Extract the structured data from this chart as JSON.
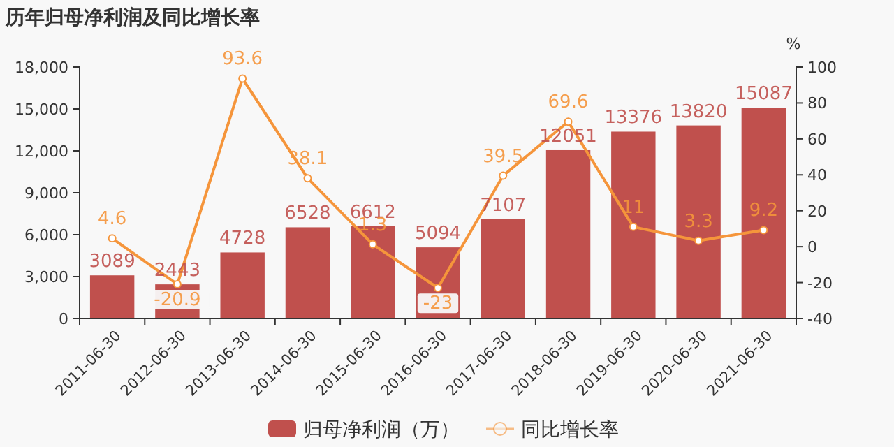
{
  "chart_data": {
    "type": "bar",
    "title": "历年归母净利润及同比增长率",
    "categories": [
      "2011-06-30",
      "2012-06-30",
      "2013-06-30",
      "2014-06-30",
      "2015-06-30",
      "2016-06-30",
      "2017-06-30",
      "2018-06-30",
      "2019-06-30",
      "2020-06-30",
      "2021-06-30"
    ],
    "series": [
      {
        "name": "归母净利润（万）",
        "color": "#c0504d",
        "values": [
          3089,
          2443,
          4728,
          6528,
          6612,
          5094,
          7107,
          12051,
          13376,
          13820,
          15087
        ]
      },
      {
        "name": "同比增长率",
        "type": "line",
        "axis": "y2",
        "color": "#f5953b",
        "values": [
          4.6,
          -20.9,
          93.6,
          38.1,
          1.3,
          -23,
          39.5,
          69.6,
          11,
          3.3,
          9.2
        ]
      }
    ],
    "ylim": [
      0,
      18000
    ],
    "yticks": [
      0,
      {
        "value": 3000,
        "label": "3,000"
      },
      {
        "value": 6000,
        "label": "6,000"
      },
      {
        "value": 9000,
        "label": "9,000"
      },
      {
        "value": 12000,
        "label": "12,000"
      },
      {
        "value": 15000,
        "label": "15,000"
      },
      {
        "value": 18000,
        "label": "18,000"
      }
    ],
    "y2label": "%",
    "y2lim": [
      -40,
      100
    ],
    "y2ticks": [
      -40,
      -20,
      0,
      20,
      40,
      60,
      80,
      100
    ],
    "data_labels": true,
    "legend": "bottom",
    "marker": "circle"
  }
}
